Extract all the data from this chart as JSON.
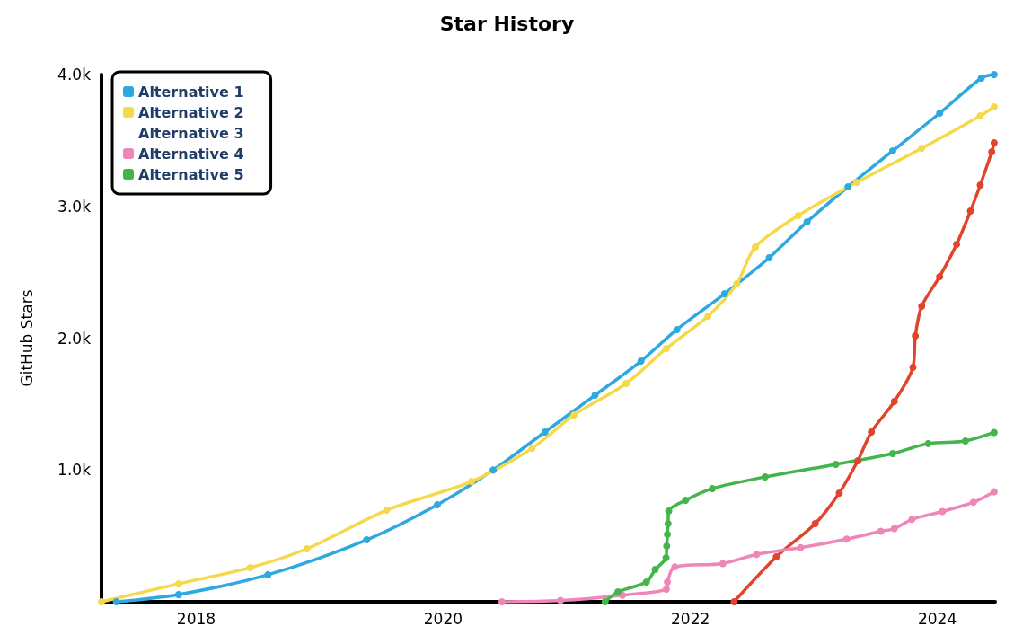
{
  "chart_data": {
    "type": "line",
    "title": "Star History",
    "ylabel": "GitHub Stars",
    "xlim": [
      "2017-03-27",
      "2024-06-20"
    ],
    "xticks": [
      {
        "value": "2018",
        "label": "2018"
      },
      {
        "value": "2020",
        "label": "2020"
      },
      {
        "value": "2022",
        "label": "2022"
      },
      {
        "value": "2024",
        "label": "2024"
      }
    ],
    "ylim": [
      0,
      4000
    ],
    "yticks": [
      {
        "value": 0,
        "label": null
      },
      {
        "value": 1000,
        "label": "1.0k"
      },
      {
        "value": 2000,
        "label": "2.0k"
      },
      {
        "value": 3000,
        "label": "3.0k"
      },
      {
        "value": 4000,
        "label": "4.0k"
      }
    ],
    "grid": false,
    "legend": "top left",
    "marker": "circle",
    "line_style": "solid",
    "series": [
      {
        "color": "#e0442a",
        "x": [
          "2022-05-10",
          "2022-09-12",
          "2023-01-05",
          "2023-03-17",
          "2023-05-11",
          "2023-06-20",
          "2023-08-27",
          "2023-10-21",
          "2023-10-28",
          "2023-11-16",
          "2024-01-08",
          "2024-02-27",
          "2024-04-08",
          "2024-05-07",
          "2024-06-10",
          "2024-06-17"
        ],
        "values": [
          0,
          341,
          593,
          825,
          1070,
          1288,
          1520,
          1779,
          2017,
          2242,
          2467,
          2712,
          2964,
          3162,
          3414,
          3482
        ]
      },
      {
        "name": "Alternative 1",
        "color": "#2ea8e0",
        "x": [
          "2017-05-10",
          "2017-11-10",
          "2018-08-01",
          "2019-05-20",
          "2019-12-15",
          "2020-05-28",
          "2020-10-28",
          "2021-03-25",
          "2021-08-08",
          "2021-11-22",
          "2022-04-12",
          "2022-08-22",
          "2022-12-12",
          "2023-04-12",
          "2023-08-22",
          "2024-01-08",
          "2024-05-10",
          "2024-06-17"
        ],
        "values": [
          0,
          55,
          205,
          470,
          736,
          1000,
          1288,
          1567,
          1826,
          2065,
          2337,
          2610,
          2883,
          3148,
          3421,
          3707,
          3973,
          4000
        ]
      },
      {
        "name": "Alternative 2",
        "color": "#f5d94a",
        "x": [
          "2017-03-27",
          "2017-11-10",
          "2018-06-10",
          "2018-11-24",
          "2019-07-18",
          "2020-03-25",
          "2020-09-20",
          "2021-01-22",
          "2021-06-25",
          "2021-10-22",
          "2022-02-22",
          "2022-05-18",
          "2022-07-12",
          "2022-11-16",
          "2023-05-08",
          "2023-11-16",
          "2024-05-07",
          "2024-06-17"
        ],
        "values": [
          0,
          136,
          259,
          402,
          695,
          913,
          1165,
          1417,
          1656,
          1922,
          2167,
          2412,
          2692,
          2930,
          3182,
          3441,
          3687,
          3755
        ]
      },
      {
        "name": "Alternative 3"
      },
      {
        "name": "Alternative 4",
        "color": "#ee87b8",
        "x": [
          "2020-06-23",
          "2020-12-13",
          "2021-06-14",
          "2021-10-22",
          "2021-10-25",
          "2021-11-16",
          "2022-04-07",
          "2022-07-16",
          "2022-11-23",
          "2023-04-08",
          "2023-07-18",
          "2023-08-27",
          "2023-10-18",
          "2024-01-16",
          "2024-04-17",
          "2024-06-17"
        ],
        "values": [
          0,
          10,
          50,
          95,
          150,
          265,
          290,
          360,
          410,
          475,
          535,
          555,
          625,
          685,
          755,
          835
        ]
      },
      {
        "name": "Alternative 5",
        "color": "#44b54a",
        "x": [
          "2021-04-24",
          "2021-06-01",
          "2021-08-24",
          "2021-09-19",
          "2021-10-21",
          "2021-10-23",
          "2021-10-25",
          "2021-10-27",
          "2021-10-29",
          "2021-12-18",
          "2022-03-07",
          "2022-08-10",
          "2023-03-07",
          "2023-08-22",
          "2023-12-05",
          "2024-03-24",
          "2024-06-17"
        ],
        "values": [
          0,
          75,
          150,
          245,
          334,
          422,
          511,
          593,
          688,
          770,
          859,
          947,
          1043,
          1124,
          1200,
          1220,
          1285
        ]
      }
    ]
  }
}
